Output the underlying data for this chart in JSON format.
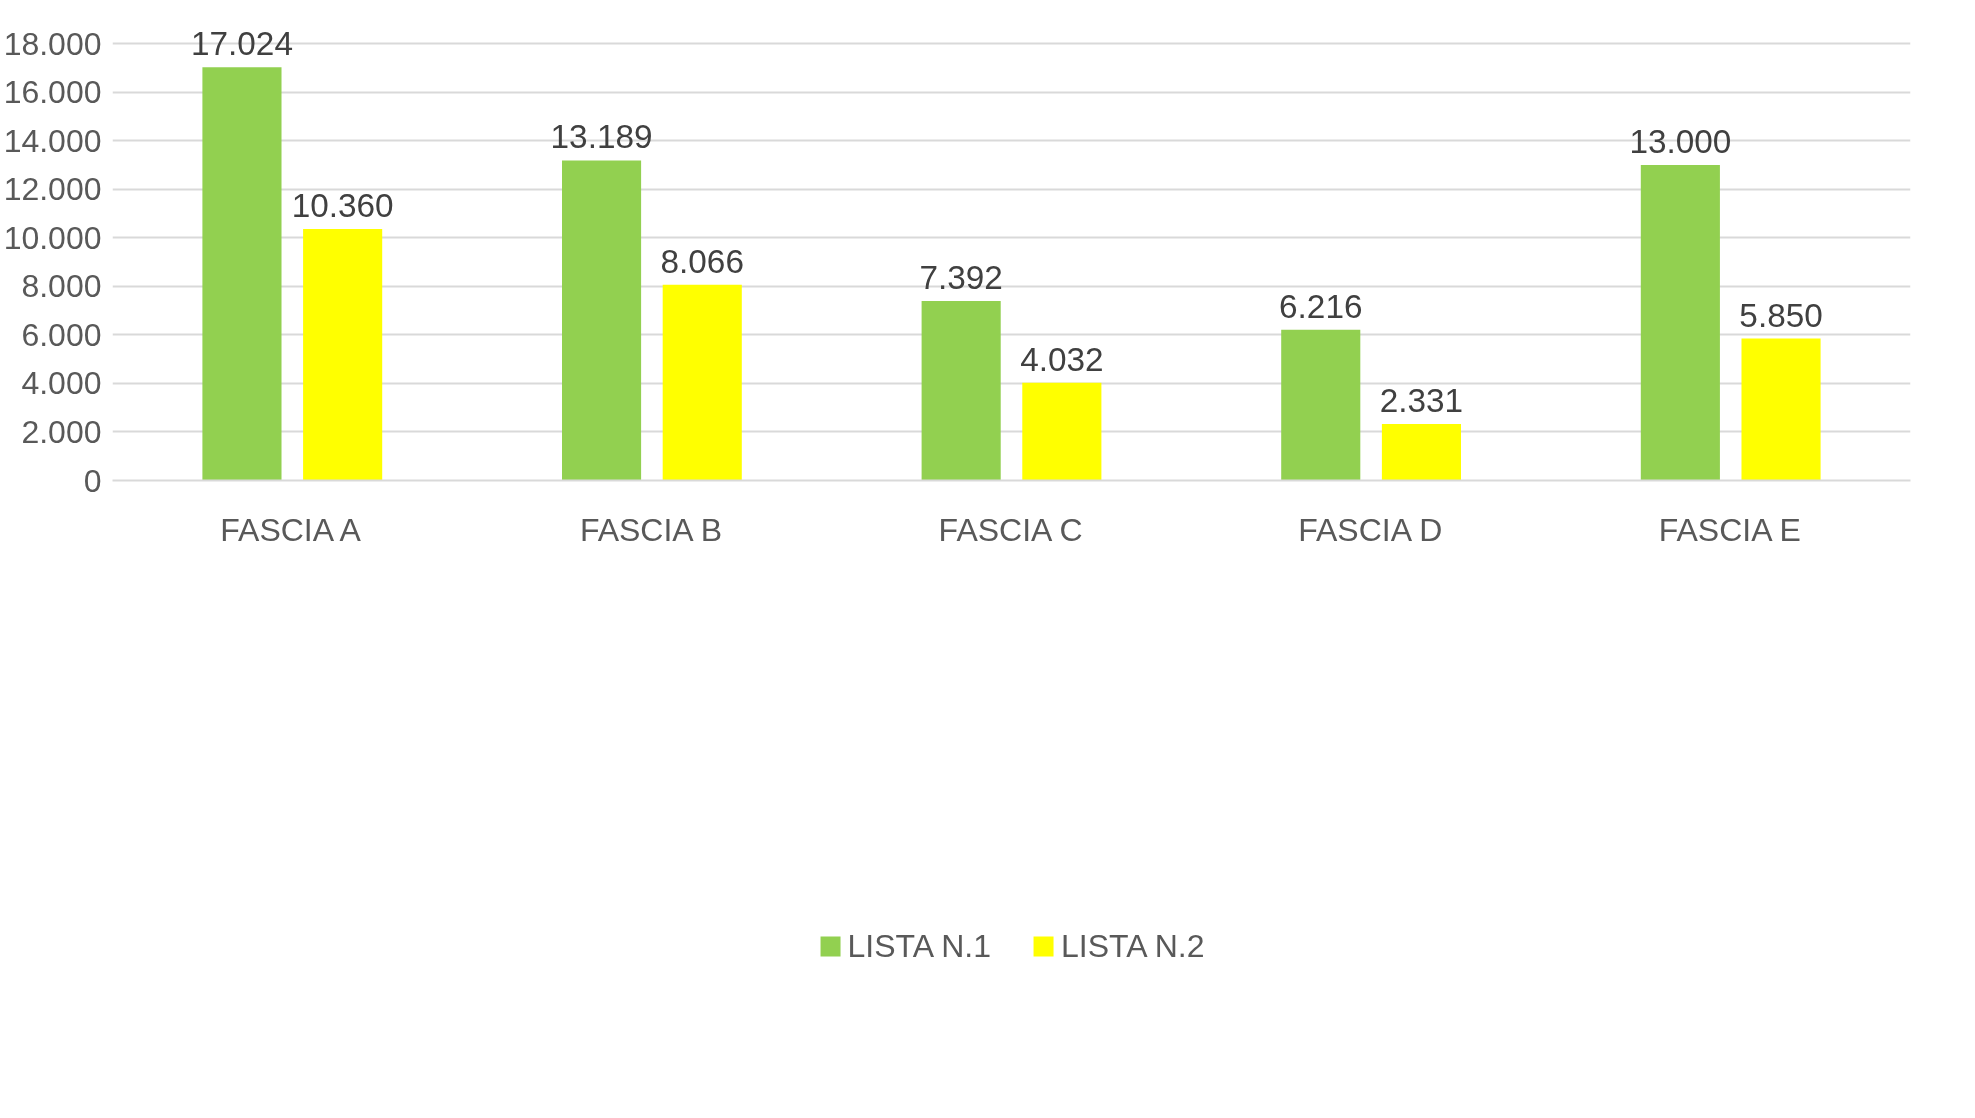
{
  "chart_data": {
    "type": "bar",
    "categories": [
      "FASCIA A",
      "FASCIA B",
      "FASCIA C",
      "FASCIA D",
      "FASCIA E"
    ],
    "series": [
      {
        "name": "LISTA N.1",
        "color": "#92d050",
        "values": [
          17024,
          13189,
          7392,
          6216,
          13000
        ],
        "value_labels": [
          "17.024",
          "13.189",
          "7.392",
          "6.216",
          "13.000"
        ]
      },
      {
        "name": "LISTA N.2",
        "color": "#ffff00",
        "values": [
          10360,
          8066,
          4032,
          2331,
          5850
        ],
        "value_labels": [
          "10.360",
          "8.066",
          "4.032",
          "2.331",
          "5.850"
        ]
      }
    ],
    "ylim": [
      0,
      18000
    ],
    "yticks": [
      {
        "value": 0,
        "label": "0"
      },
      {
        "value": 2000,
        "label": "2.000"
      },
      {
        "value": 4000,
        "label": "4.000"
      },
      {
        "value": 6000,
        "label": "6.000"
      },
      {
        "value": 8000,
        "label": "8.000"
      },
      {
        "value": 10000,
        "label": "10.000"
      },
      {
        "value": 12000,
        "label": "12.000"
      },
      {
        "value": 14000,
        "label": "14.000"
      },
      {
        "value": 16000,
        "label": "16.000"
      },
      {
        "value": 18000,
        "label": "18.000"
      }
    ],
    "grid": "y",
    "legend": "bottom"
  }
}
